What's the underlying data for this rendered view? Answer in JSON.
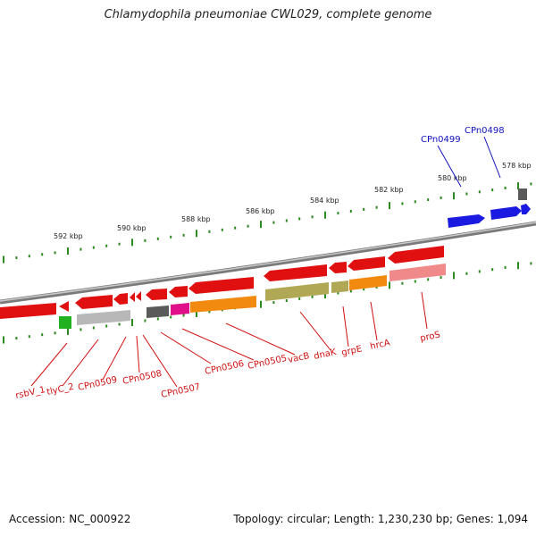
{
  "title": "Chlamydophila pneumoniae CWL029, complete genome",
  "footer": {
    "accession": "Accession: NC_000922",
    "summary": "Topology: circular; Length: 1,230,230 bp; Genes: 1,094"
  },
  "colors": {
    "gene_label": "#d01010",
    "highlight_label": "#1010c0",
    "backbone": "#8a8a8a",
    "tick": "#2a8a1e",
    "ruler_text": "#222222"
  },
  "ruler": {
    "labels": [
      "592 kbp",
      "590 kbp",
      "588 kbp",
      "586 kbp",
      "584 kbp",
      "582 kbp",
      "580 kbp",
      "578 kbp"
    ]
  },
  "gene_labels": [
    "rsbV_1",
    "tlyC_2",
    "CPn0509",
    "CPn0508",
    "CPn0507",
    "CPn0506",
    "CPn0505",
    "vacB",
    "dnaK",
    "grpE",
    "hrcA",
    "proS"
  ],
  "highlight_labels": [
    "CPn0499",
    "CPn0498"
  ]
}
